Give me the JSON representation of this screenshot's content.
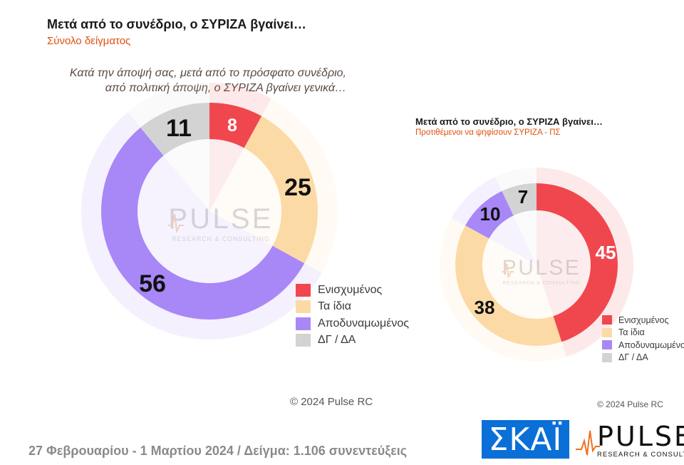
{
  "header": {
    "title": "Μετά από το συνέδριο, ο ΣΥΡΙΖΑ βγαίνει…",
    "subtitle": "Σύνολο δείγματος",
    "question_line1": "Κατά την άποψή σας, μετά από το πρόσφατο συνέδριο,",
    "question_line2": "από πολιτική άποψη, ο ΣΥΡΙΖΑ βγαίνει γενικά…"
  },
  "chart_data": [
    {
      "type": "pie",
      "variant": "donut",
      "title": "Μετά από το συνέδριο, ο ΣΥΡΙΖΑ βγαίνει…",
      "subtitle": "Σύνολο δείγματος",
      "categories": [
        "Ενισχυμένος",
        "Τα ίδια",
        "Αποδυναμωμένος",
        "ΔΓ / ΔΑ"
      ],
      "values": [
        8,
        25,
        56,
        11
      ],
      "colors": [
        "#f0474e",
        "#fcdaa6",
        "#a887f7",
        "#d3d3d3"
      ],
      "legend": "bottom-right"
    },
    {
      "type": "pie",
      "variant": "donut",
      "title": "Μετά από το συνέδριο, ο ΣΥΡΙΖΑ βγαίνει…",
      "subtitle": "Προτιθέμενοι να ψηφίσουν ΣΥΡΙΖΑ - ΠΣ",
      "categories": [
        "Ενισχυμένος",
        "Τα ίδια",
        "Αποδυναμωμένος",
        "ΔΓ / ΔΑ"
      ],
      "values": [
        45,
        38,
        10,
        7
      ],
      "colors": [
        "#f0474e",
        "#fcdaa6",
        "#a887f7",
        "#d3d3d3"
      ],
      "legend": "bottom-right"
    }
  ],
  "chart2_header": {
    "title": "Μετά από το συνέδριο, ο ΣΥΡΙΖΑ βγαίνει…",
    "subtitle": "Προτιθέμενοι να ψηφίσουν ΣΥΡΙΖΑ - ΠΣ"
  },
  "watermark": {
    "word": "PULSE",
    "tag": "RESEARCH & CONSULTING"
  },
  "copyright1": "© 2024 Pulse RC",
  "copyright2": "© 2024 Pulse RC",
  "footer": "27 Φεβρουαρίου - 1 Μαρτίου 2024  /  Δείγμα:  1.106 συνεντεύξεις",
  "logos": {
    "skai": "ΣΚΑΪ",
    "pulse_word": "PULSE",
    "pulse_tag": "RESEARCH & CONSULTING"
  }
}
